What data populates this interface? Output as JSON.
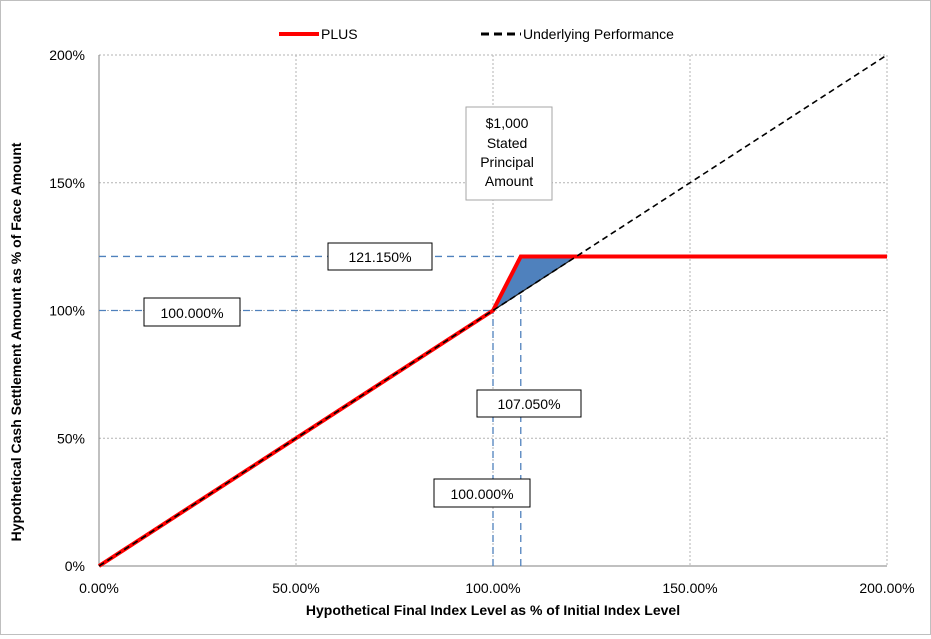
{
  "chart_data": {
    "type": "line",
    "xlabel": "Hypothetical Final Index Level as % of Initial Index Level",
    "ylabel": "Hypothetical Cash Settlement Amount as % of Face Amount",
    "xlim": [
      0,
      200
    ],
    "ylim": [
      0,
      200
    ],
    "x_ticks": [
      "0.00%",
      "50.00%",
      "100.00%",
      "150.00%",
      "200.00%"
    ],
    "x_tick_values": [
      0,
      50,
      100,
      150,
      200
    ],
    "y_ticks": [
      "0%",
      "50%",
      "100%",
      "150%",
      "200%"
    ],
    "y_tick_values": [
      0,
      50,
      100,
      150,
      200
    ],
    "grid": true,
    "legend_position": "top",
    "series": [
      {
        "name": "PLUS",
        "color": "#ff0000",
        "style": "solid",
        "x": [
          0,
          100,
          107.05,
          200
        ],
        "y": [
          0,
          100,
          121.15,
          121.15
        ]
      },
      {
        "name": "Underlying Performance",
        "color": "#000000",
        "style": "dashed",
        "x": [
          0,
          200
        ],
        "y": [
          0,
          200
        ]
      }
    ],
    "shaded_region": {
      "color": "#4f81bd",
      "x": [
        100,
        107.05,
        121.15
      ],
      "y": [
        100,
        121.15,
        121.15
      ]
    },
    "reference_lines": {
      "color": "#4f81bd",
      "horizontal": [
        121.15,
        100
      ],
      "vertical": [
        100,
        107.05
      ]
    },
    "annotations": {
      "principal": "$1,000\nStated\nPrincipal\nAmount",
      "y_max_return": "121.150%",
      "y_initial": "100.000%",
      "x_cap": "107.050%",
      "x_initial": "100.000%"
    }
  }
}
